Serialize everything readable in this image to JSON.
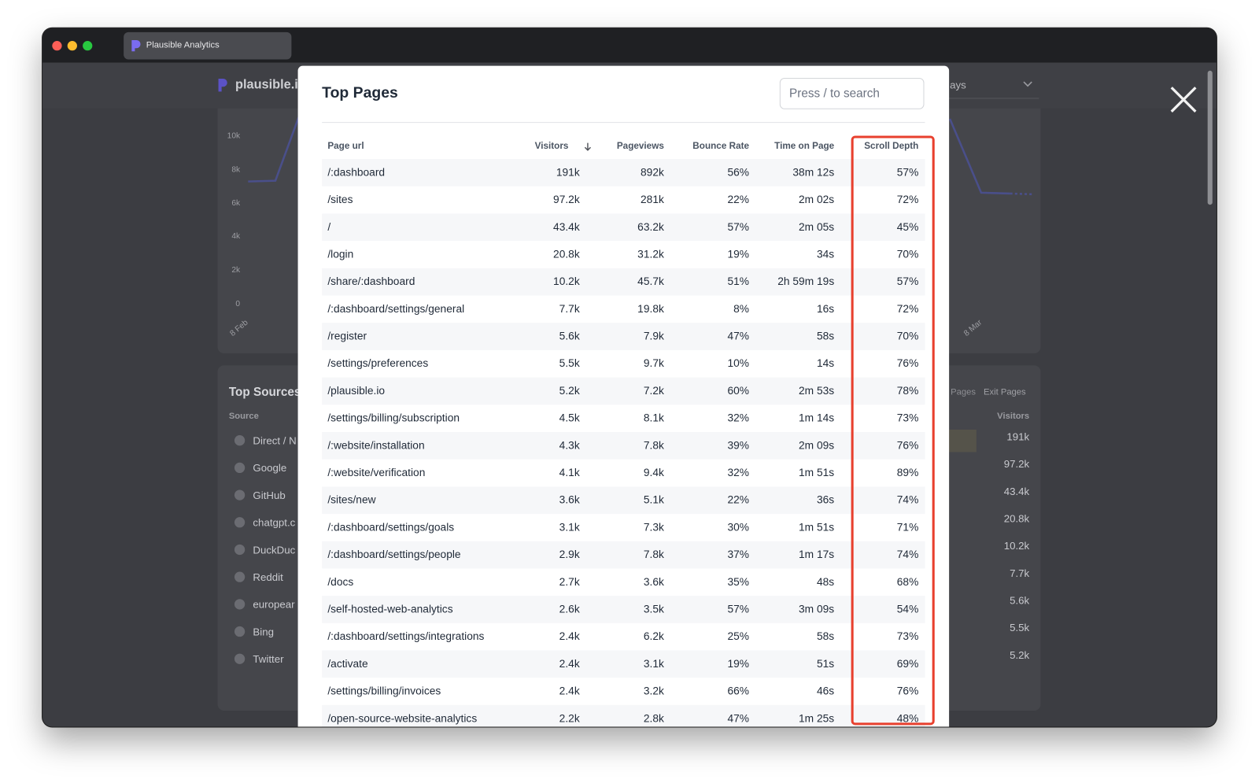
{
  "browser": {
    "tab_title": "Plausible Analytics"
  },
  "background": {
    "logo": "plausible.io",
    "date_range": "ays",
    "chart_yticks": [
      "10k",
      "8k",
      "6k",
      "4k",
      "2k",
      "0"
    ],
    "chart_xlabels": [
      "8 Feb",
      "8 Mar"
    ],
    "sources": {
      "title": "Top Sources",
      "tabs": [
        "Pages",
        "Exit Pages"
      ],
      "columns": [
        "Source",
        "Visitors"
      ],
      "names": [
        "Direct / N",
        "Google",
        "GitHub",
        "chatgpt.c",
        "DuckDuc",
        "Reddit",
        "europear",
        "Bing",
        "Twitter"
      ],
      "visitors": [
        "191k",
        "97.2k",
        "43.4k",
        "20.8k",
        "10.2k",
        "7.7k",
        "5.6k",
        "5.5k",
        "5.2k"
      ]
    }
  },
  "modal": {
    "title": "Top Pages",
    "search_placeholder": "Press / to search",
    "columns": [
      "Page url",
      "Visitors",
      "Pageviews",
      "Bounce Rate",
      "Time on Page",
      "Scroll Depth"
    ],
    "rows": [
      [
        "/:dashboard",
        "191k",
        "892k",
        "56%",
        "38m 12s",
        "57%"
      ],
      [
        "/sites",
        "97.2k",
        "281k",
        "22%",
        "2m 02s",
        "72%"
      ],
      [
        "/",
        "43.4k",
        "63.2k",
        "57%",
        "2m 05s",
        "45%"
      ],
      [
        "/login",
        "20.8k",
        "31.2k",
        "19%",
        "34s",
        "70%"
      ],
      [
        "/share/:dashboard",
        "10.2k",
        "45.7k",
        "51%",
        "2h 59m 19s",
        "57%"
      ],
      [
        "/:dashboard/settings/general",
        "7.7k",
        "19.8k",
        "8%",
        "16s",
        "72%"
      ],
      [
        "/register",
        "5.6k",
        "7.9k",
        "47%",
        "58s",
        "70%"
      ],
      [
        "/settings/preferences",
        "5.5k",
        "9.7k",
        "10%",
        "14s",
        "76%"
      ],
      [
        "/plausible.io",
        "5.2k",
        "7.2k",
        "60%",
        "2m 53s",
        "78%"
      ],
      [
        "/settings/billing/subscription",
        "4.5k",
        "8.1k",
        "32%",
        "1m 14s",
        "73%"
      ],
      [
        "/:website/installation",
        "4.3k",
        "7.8k",
        "39%",
        "2m 09s",
        "76%"
      ],
      [
        "/:website/verification",
        "4.1k",
        "9.4k",
        "32%",
        "1m 51s",
        "89%"
      ],
      [
        "/sites/new",
        "3.6k",
        "5.1k",
        "22%",
        "36s",
        "74%"
      ],
      [
        "/:dashboard/settings/goals",
        "3.1k",
        "7.3k",
        "30%",
        "1m 51s",
        "71%"
      ],
      [
        "/:dashboard/settings/people",
        "2.9k",
        "7.8k",
        "37%",
        "1m 17s",
        "74%"
      ],
      [
        "/docs",
        "2.7k",
        "3.6k",
        "35%",
        "48s",
        "68%"
      ],
      [
        "/self-hosted-web-analytics",
        "2.6k",
        "3.5k",
        "57%",
        "3m 09s",
        "54%"
      ],
      [
        "/:dashboard/settings/integrations",
        "2.4k",
        "6.2k",
        "25%",
        "58s",
        "73%"
      ],
      [
        "/activate",
        "2.4k",
        "3.1k",
        "19%",
        "51s",
        "69%"
      ],
      [
        "/settings/billing/invoices",
        "2.4k",
        "3.2k",
        "66%",
        "46s",
        "76%"
      ],
      [
        "/open-source-website-analytics",
        "2.2k",
        "2.8k",
        "47%",
        "1m 25s",
        "48%"
      ]
    ]
  }
}
